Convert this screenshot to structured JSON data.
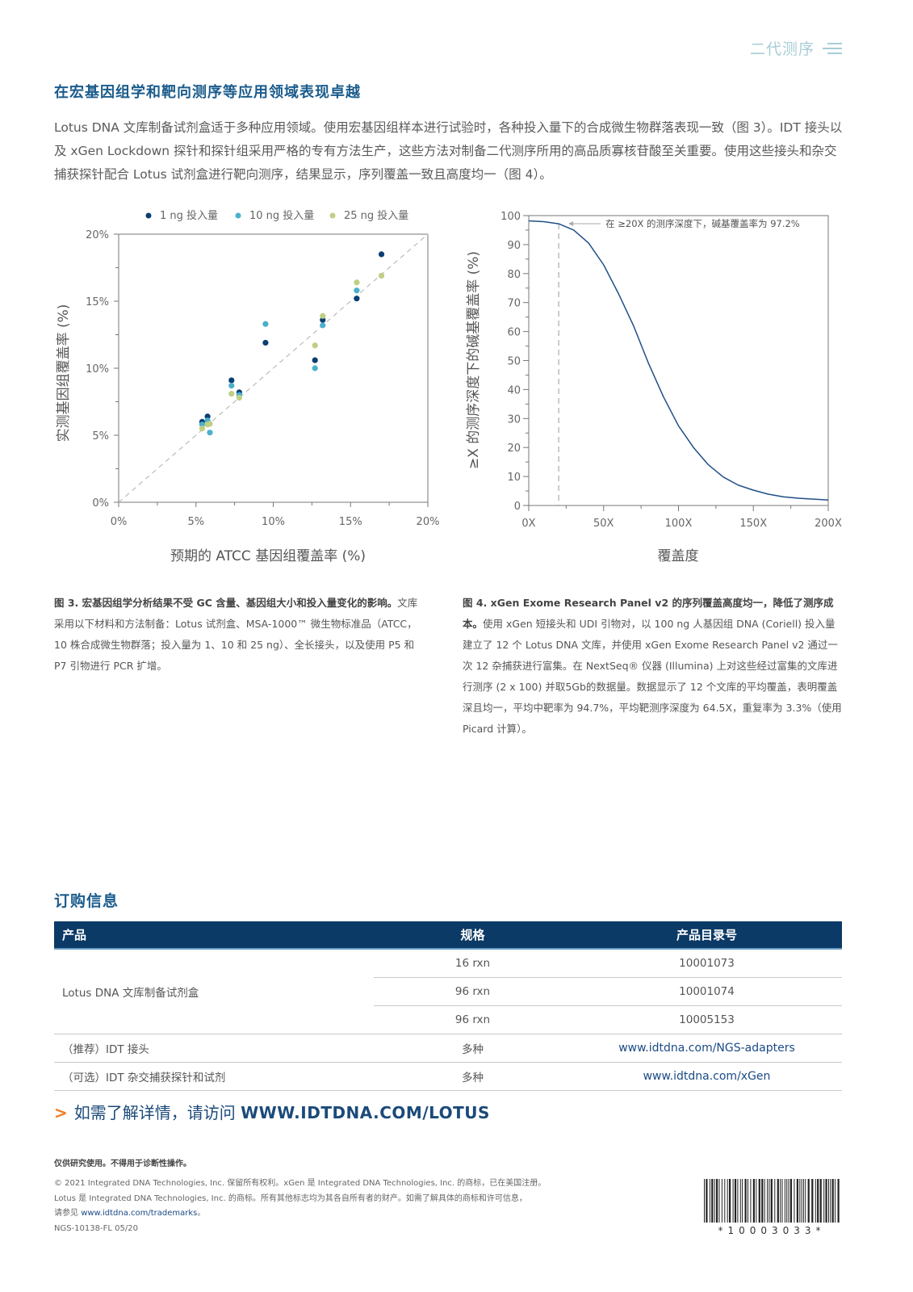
{
  "header": {
    "section": "二代测序",
    "menu_icon": "hamburger-lines-icon"
  },
  "title": "在宏基因组学和靶向测序等应用领域表现卓越",
  "intro": "Lotus DNA 文库制备试剂盒适于多种应用领域。使用宏基因组样本进行试验时，各种投入量下的合成微生物群落表现一致（图 3）。IDT 接头以及 xGen Lockdown 探针和探针组采用严格的专有方法生产，这些方法对制备二代测序所用的高品质寡核苷酸至关重要。使用这些接头和杂交捕获探针配合 Lotus 试剂盒进行靶向测序，结果显示，序列覆盖一致且高度均一（图 4）。",
  "chart_data": [
    {
      "type": "scatter",
      "title": "",
      "xlabel": "预期的 ATCC 基因组覆盖率 (%)",
      "ylabel": "实测基因组覆盖率 (%)",
      "xlim": [
        0,
        20
      ],
      "ylim": [
        0,
        20
      ],
      "x_ticks": [
        "0%",
        "5%",
        "10%",
        "15%",
        "20%"
      ],
      "y_ticks": [
        "0%",
        "5%",
        "10%",
        "15%",
        "20%"
      ],
      "legend_position": "top",
      "reference_line": "y = x (dashed)",
      "series": [
        {
          "name": "1 ng 投入量",
          "color": "#0b3f73",
          "points": [
            [
              5.4,
              6.0
            ],
            [
              5.75,
              6.4
            ],
            [
              7.3,
              9.1
            ],
            [
              7.8,
              8.2
            ],
            [
              9.5,
              11.9
            ],
            [
              12.7,
              10.6
            ],
            [
              13.2,
              13.6
            ],
            [
              15.4,
              15.2
            ],
            [
              17.0,
              18.5
            ]
          ]
        },
        {
          "name": "10 ng 投入量",
          "color": "#4ab0cc",
          "points": [
            [
              5.4,
              5.8
            ],
            [
              5.75,
              6.1
            ],
            [
              5.9,
              5.2
            ],
            [
              7.3,
              8.7
            ],
            [
              7.8,
              8.0
            ],
            [
              9.5,
              13.3
            ],
            [
              12.7,
              10.0
            ],
            [
              13.2,
              13.2
            ],
            [
              15.4,
              15.8
            ]
          ]
        },
        {
          "name": "25 ng 投入量",
          "color": "#bfcf84",
          "points": [
            [
              5.4,
              5.5
            ],
            [
              5.75,
              5.8
            ],
            [
              5.9,
              5.85
            ],
            [
              7.3,
              8.1
            ],
            [
              7.8,
              7.8
            ],
            [
              12.7,
              11.7
            ],
            [
              13.2,
              13.9
            ],
            [
              15.4,
              16.4
            ],
            [
              17.0,
              16.9
            ]
          ]
        }
      ]
    },
    {
      "type": "line",
      "title": "",
      "xlabel": "覆盖度",
      "ylabel": "≥X 的测序深度下的碱基覆盖率 (%)",
      "xlim": [
        0,
        200
      ],
      "ylim": [
        0,
        100
      ],
      "x_ticks": [
        "0X",
        "50X",
        "100X",
        "150X",
        "200X"
      ],
      "y_ticks": [
        "0",
        "10",
        "20",
        "30",
        "40",
        "50",
        "60",
        "70",
        "80",
        "90",
        "100"
      ],
      "annotation": "在 ≥20X 的测序深度下，碱基覆盖率为 97.2%",
      "marker_x": 20,
      "series": [
        {
          "name": "coverage",
          "color": "#1f4f86",
          "x": [
            0,
            10,
            20,
            30,
            40,
            50,
            60,
            70,
            80,
            90,
            100,
            110,
            120,
            130,
            140,
            150,
            160,
            170,
            180,
            190,
            200
          ],
          "y": [
            98.2,
            97.9,
            97.2,
            95.0,
            90.5,
            83.0,
            73.0,
            62.0,
            49.0,
            37.4,
            27.5,
            20.0,
            14.0,
            9.8,
            7.0,
            5.3,
            3.9,
            3.0,
            2.5,
            2.2,
            1.9
          ]
        }
      ]
    }
  ],
  "captions": {
    "fig3_bold": "图 3. 宏基因组学分析结果不受 GC 含量、基因组大小和投入量变化的影响。",
    "fig3_text": "文库采用以下材料和方法制备：Lotus 试剂盒、MSA-1000™ 微生物标准品（ATCC，10 株合成微生物群落；投入量为 1、10 和 25 ng）、全长接头，以及使用 P5 和 P7 引物进行 PCR 扩增。",
    "fig4_bold": "图 4. xGen Exome Research Panel v2 的序列覆盖高度均一，降低了测序成本。",
    "fig4_text": "使用 xGen 短接头和 UDI 引物对，以 100 ng 人基因组 DNA (Coriell) 投入量建立了 12 个 Lotus DNA 文库，并使用 xGen Exome Research Panel v2 通过一次 12 杂捕获进行富集。在 NextSeq® 仪器 (Illumina) 上对这些经过富集的文库进行测序 (2 x 100) 并取5Gb的数据量。数据显示了 12 个文库的平均覆盖，表明覆盖深且均一，平均中靶率为 94.7%，平均靶测序深度为 64.5X，重复率为 3.3%（使用 Picard 计算）。"
  },
  "order": {
    "title": "订购信息",
    "headers": [
      "产品",
      "规格",
      "产品目录号"
    ],
    "lotus_product": "Lotus DNA 文库制备试剂盒",
    "lotus_rows": [
      {
        "spec": "16 rxn",
        "catalog": "10001073"
      },
      {
        "spec": "96 rxn",
        "catalog": "10001074"
      },
      {
        "spec": "96 rxn",
        "catalog": "10005153"
      }
    ],
    "other_rows": [
      {
        "product": "（推荐）IDT 接头",
        "spec": "多种",
        "catalog": "www.idtdna.com/NGS-adapters"
      },
      {
        "product": "（可选）IDT 杂交捕获探针和试剂",
        "spec": "多种",
        "catalog": "www.idtdna.com/xGen"
      }
    ]
  },
  "cta": {
    "arrow": ">",
    "text": "如需了解详情，请访问 ",
    "url": "WWW.IDTDNA.COM/LOTUS"
  },
  "footer": {
    "ruo": "仅供研究使用。不得用于诊断性操作。",
    "line1": "© 2021 Integrated DNA Technologies, Inc. 保留所有权利。xGen 是 Integrated DNA Technologies, Inc. 的商标，已在美国注册。",
    "line2": "Lotus 是 Integrated DNA Technologies, Inc. 的商标。所有其他标志均为其各自所有者的财产。如需了解具体的商标和许可信息，",
    "line3_prefix": "请参见 ",
    "line3_link": "www.idtdna.com/trademarks",
    "line3_suffix": "。",
    "doc_code": "NGS-10138-FL 05/20",
    "barcode_text": "*10003033*"
  },
  "colors": {
    "navy": "#0b3a66",
    "heading": "#1b5c8c",
    "accent": "#f47b20"
  }
}
